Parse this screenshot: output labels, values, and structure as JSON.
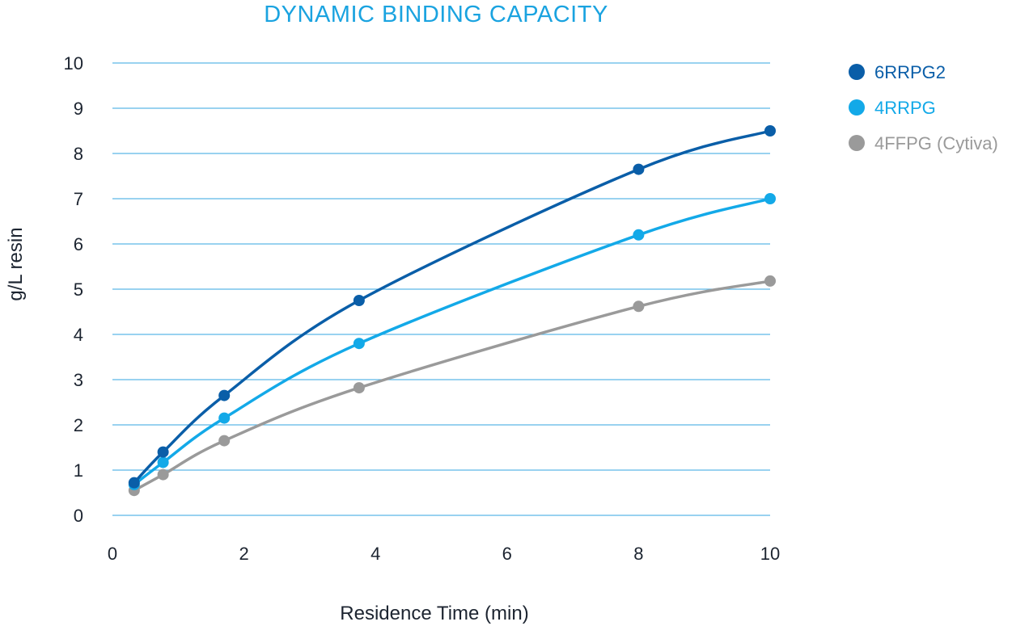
{
  "chart_data": {
    "type": "line",
    "title": "DYNAMIC BINDING CAPACITY",
    "xlabel": "Residence Time (min)",
    "ylabel": "g/L resin",
    "xlim": [
      0,
      10
    ],
    "ylim": [
      0,
      10
    ],
    "x_ticks": [
      "0",
      "2",
      "4",
      "6",
      "8",
      "10"
    ],
    "y_ticks": [
      "0",
      "1",
      "2",
      "3",
      "4",
      "5",
      "6",
      "7",
      "8",
      "9",
      "10"
    ],
    "grid": true,
    "legend_position": "top-right",
    "series": [
      {
        "name": "6RRPG2",
        "color": "#0a5ea8",
        "x": [
          0.33,
          0.77,
          1.7,
          3.75,
          8.0,
          10.0
        ],
        "y": [
          0.72,
          1.4,
          2.65,
          4.75,
          7.65,
          8.5
        ]
      },
      {
        "name": "4RRPG",
        "color": "#13a9e8",
        "x": [
          0.33,
          0.77,
          1.7,
          3.75,
          8.0,
          10.0
        ],
        "y": [
          0.68,
          1.17,
          2.15,
          3.8,
          6.2,
          7.0
        ]
      },
      {
        "name": "4FFPG (Cytiva)",
        "color": "#9a9a9a",
        "x": [
          0.33,
          0.77,
          1.7,
          3.75,
          8.0,
          10.0
        ],
        "y": [
          0.55,
          0.9,
          1.65,
          2.82,
          4.62,
          5.18
        ]
      }
    ]
  }
}
